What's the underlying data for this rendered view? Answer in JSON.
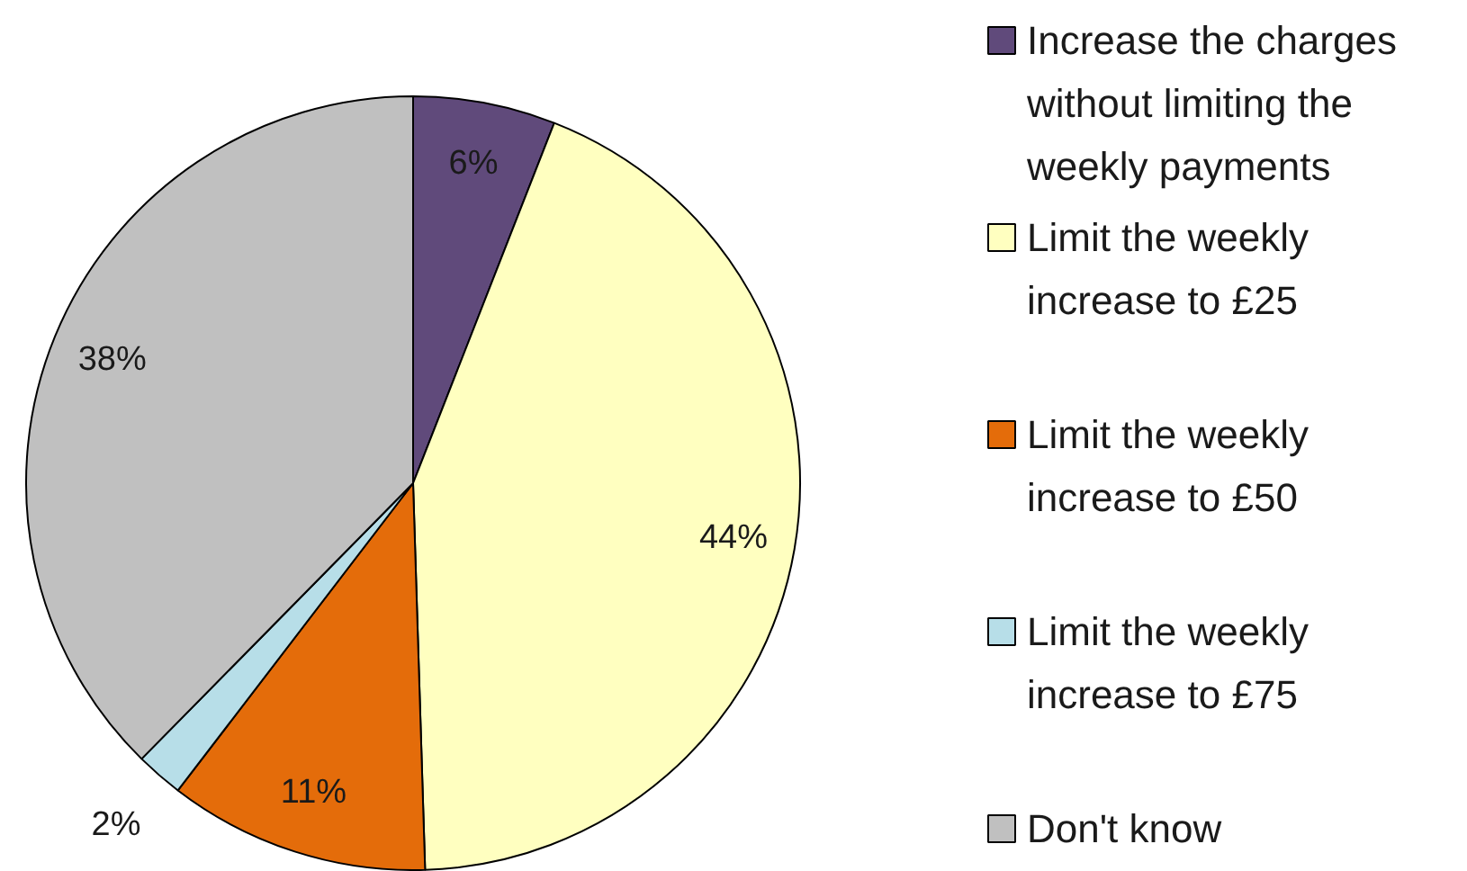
{
  "chart_data": {
    "type": "pie",
    "categories": [
      "Increase the charges without limiting the weekly payments",
      "Limit the weekly increase to £25",
      "Limit the weekly increase to £50",
      "Limit the weekly increase to £75",
      "Don't know"
    ],
    "values": [
      6,
      44,
      11,
      2,
      38
    ],
    "colors": [
      "#604a7b",
      "#ffffc0",
      "#e46c0a",
      "#b7dee8",
      "#c0c0c0"
    ],
    "value_labels": [
      "6%",
      "44%",
      "11%",
      "2%",
      "38%"
    ],
    "legend": "right"
  }
}
